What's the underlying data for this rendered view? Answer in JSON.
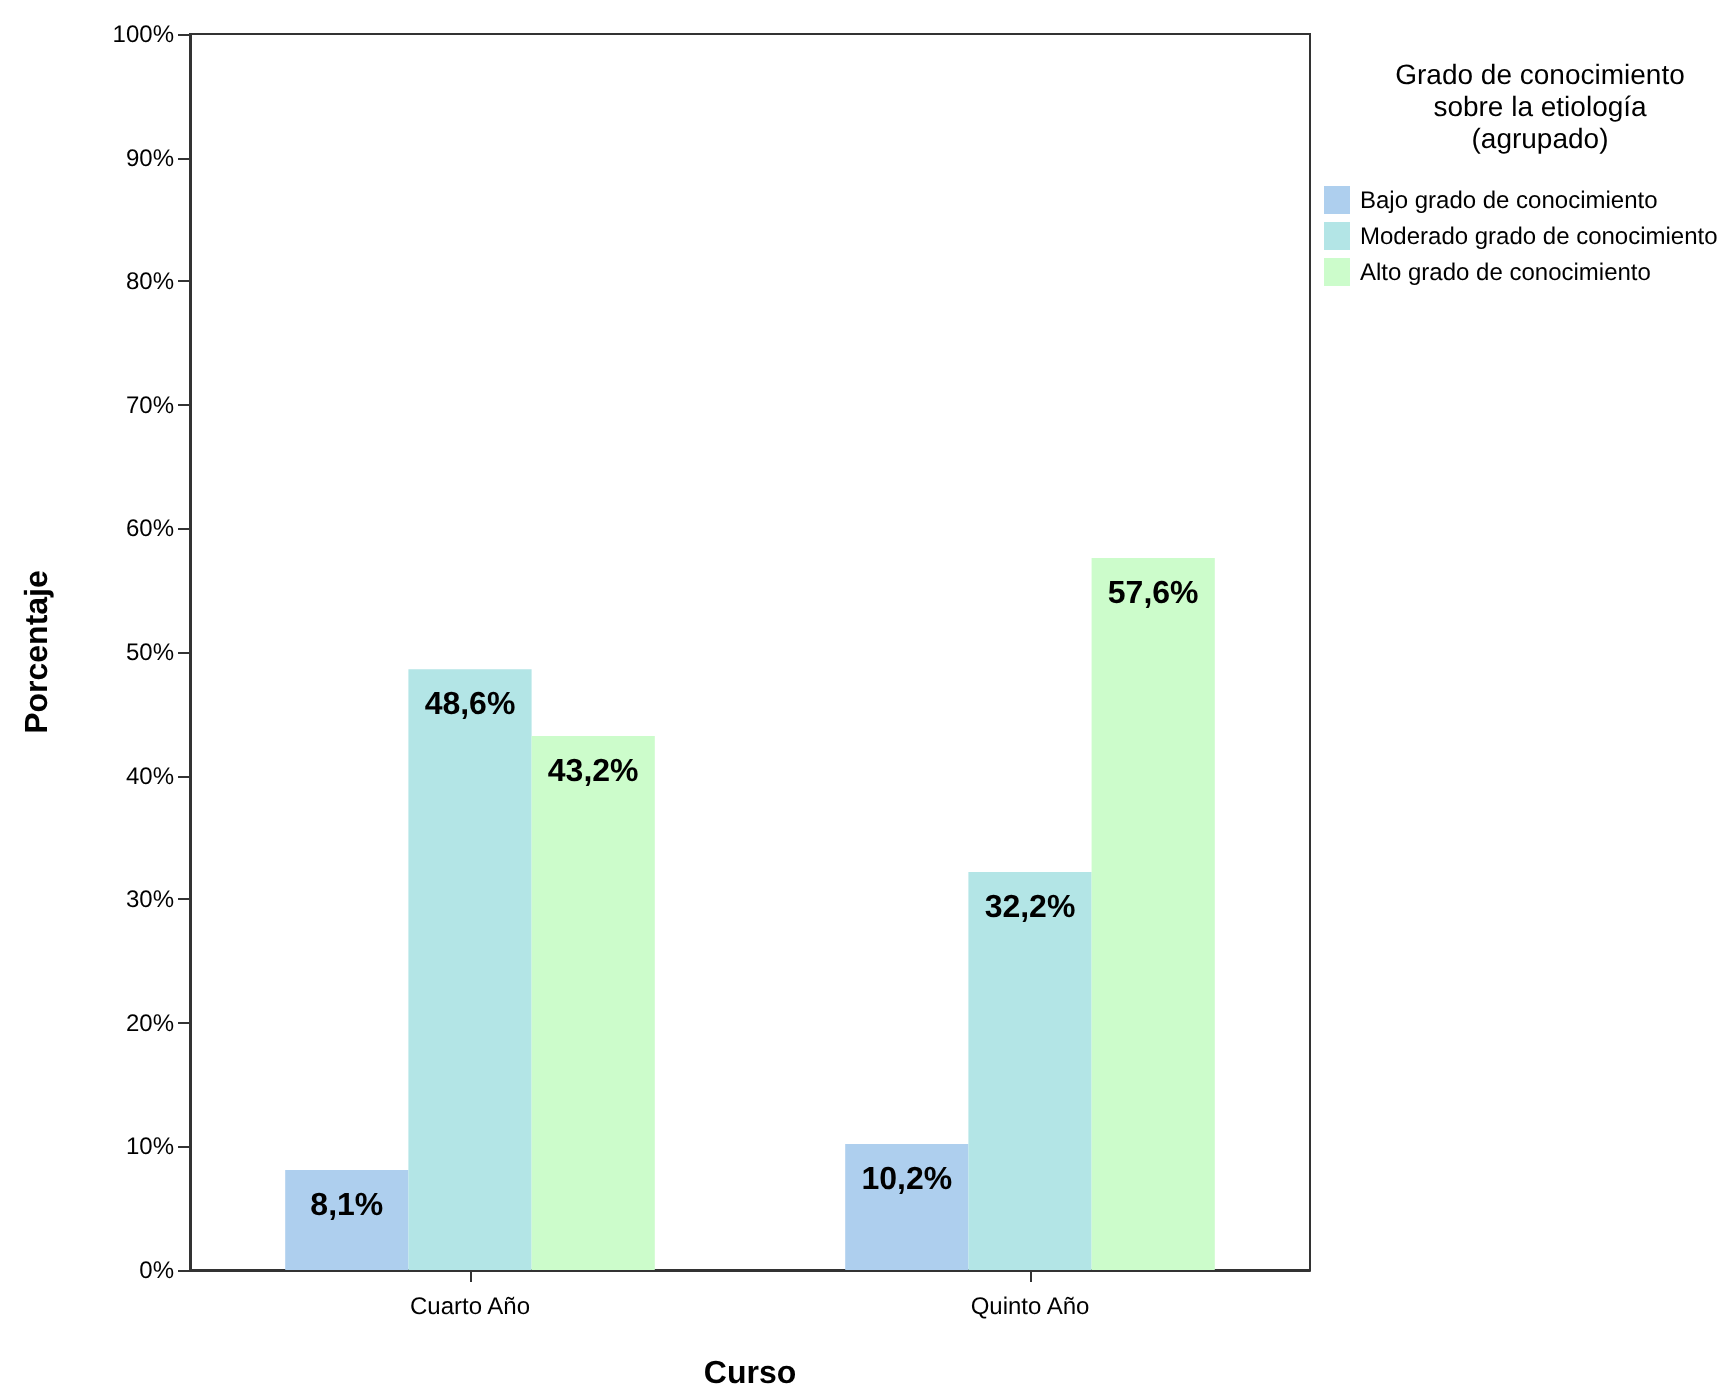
{
  "chart_data": {
    "type": "bar",
    "xlabel": "Curso",
    "ylabel": "Porcentaje",
    "legend_title": "Grado de conocimiento\nsobre la etiología\n(agrupado)",
    "legend": "right",
    "categories": [
      "Cuarto Año",
      "Quinto Año"
    ],
    "series": [
      {
        "name": "Bajo grado de conocimiento",
        "color": "#aecfee",
        "values": [
          8.1,
          10.2
        ],
        "value_labels": [
          "8,1%",
          "10,2%"
        ]
      },
      {
        "name": "Moderado grado de conocimiento",
        "color": "#b3e5e6",
        "values": [
          48.6,
          32.2
        ],
        "value_labels": [
          "48,6%",
          "32,2%"
        ]
      },
      {
        "name": "Alto grado de conocimiento",
        "color": "#ccfccb",
        "values": [
          43.2,
          57.6
        ],
        "value_labels": [
          "43,2%",
          "57,6%"
        ]
      }
    ],
    "ylim": [
      0,
      100
    ],
    "yticks": [
      {
        "value": 0,
        "label": "0%"
      },
      {
        "value": 10,
        "label": "10%"
      },
      {
        "value": 20,
        "label": "20%"
      },
      {
        "value": 30,
        "label": "30%"
      },
      {
        "value": 40,
        "label": "40%"
      },
      {
        "value": 50,
        "label": "50%"
      },
      {
        "value": 60,
        "label": "60%"
      },
      {
        "value": 70,
        "label": "70%"
      },
      {
        "value": 80,
        "label": "80%"
      },
      {
        "value": 90,
        "label": "90%"
      },
      {
        "value": 100,
        "label": "100%"
      }
    ],
    "grid": false
  }
}
